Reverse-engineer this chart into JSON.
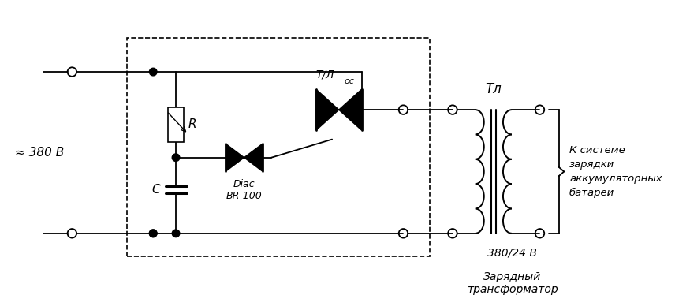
{
  "bg_color": "#ffffff",
  "line_color": "#000000",
  "fig_w": 8.75,
  "fig_h": 3.79,
  "label_380v": "≈ 380 В",
  "label_tl": "Тл",
  "label_tlos": "Т/Л",
  "label_tlos_sub": "ос",
  "label_R": "R",
  "label_C": "C",
  "label_diac": "Diac\nBR-100",
  "label_380_24": "380/24 В",
  "label_zaryadny": "Зарядный\nтрансформатор",
  "label_k_sisteme": "К системе\nзарядки\nаккумуляторных\nбатарей"
}
